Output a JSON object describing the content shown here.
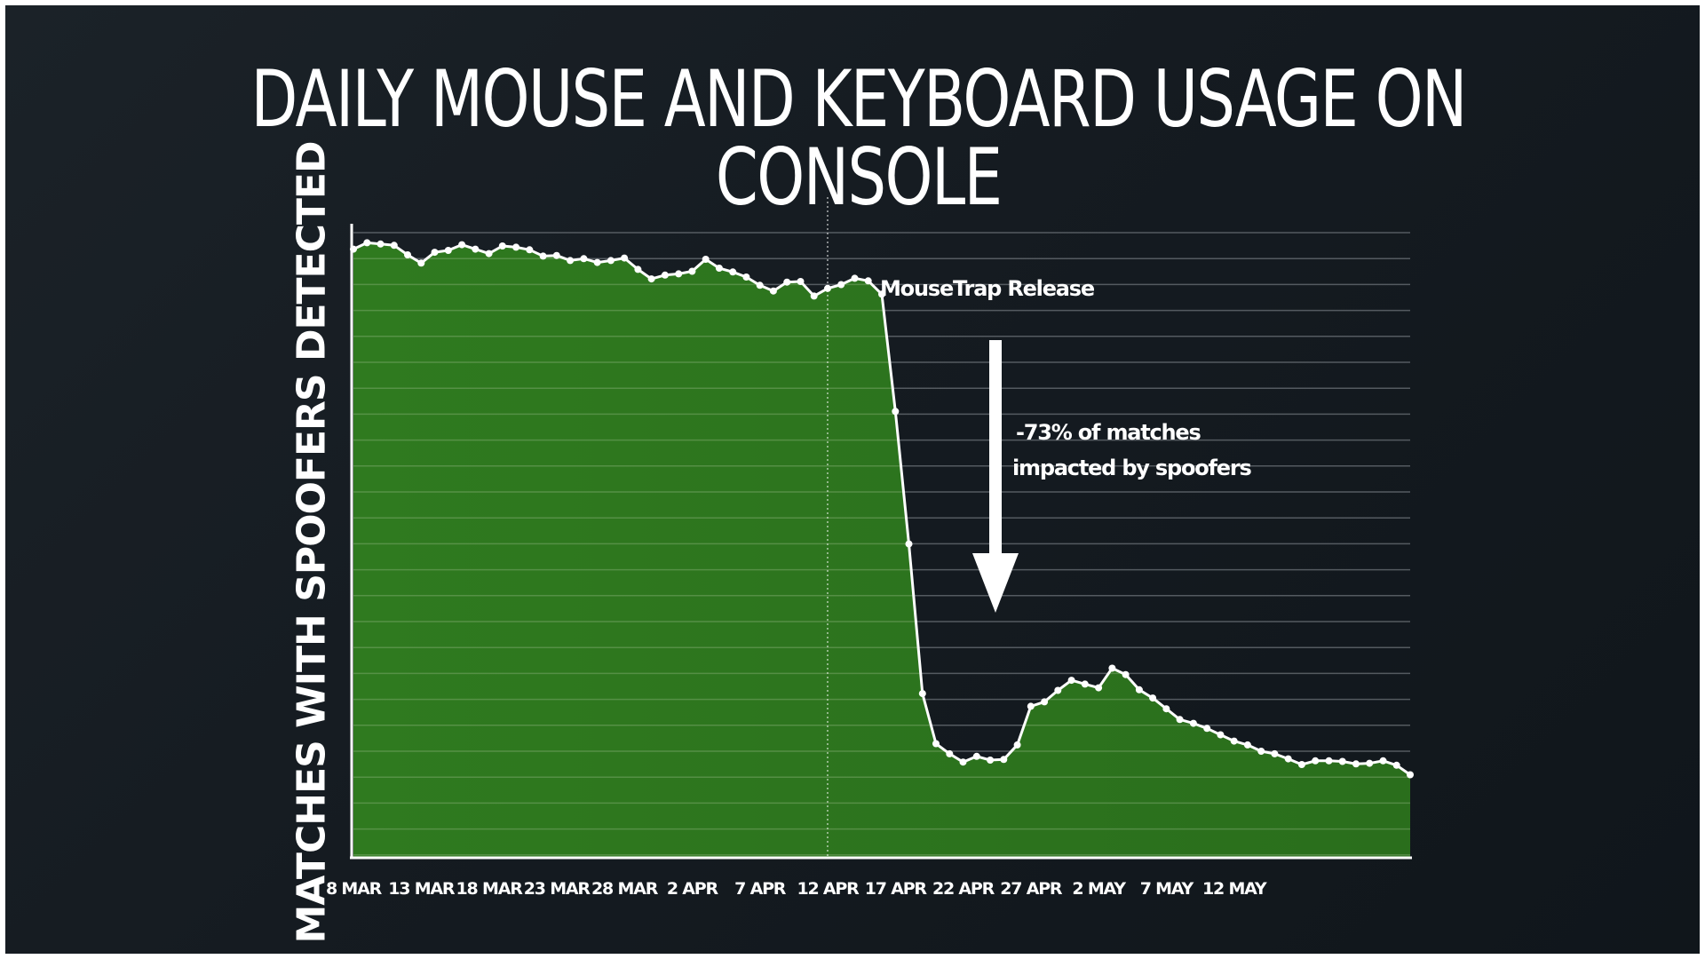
{
  "title": "DAILY MOUSE AND KEYBOARD USAGE ON CONSOLE",
  "chart_data": {
    "type": "area",
    "title": "DAILY MOUSE AND KEYBOARD USAGE ON CONSOLE",
    "xlabel": "",
    "ylabel": "MATCHES WITH SPOOFERS DETECTED",
    "x_tick_labels": [
      "8 MAR",
      "13 MAR",
      "18 MAR",
      "23 MAR",
      "28 MAR",
      "2 APR",
      "7 APR",
      "12 APR",
      "17 APR",
      "22 APR",
      "27 APR",
      "2 MAY",
      "7 MAY",
      "12 MAY"
    ],
    "y_ticks_labeled": false,
    "grid": true,
    "series_color": "#2d6e1e",
    "values": [
      96.0,
      97.0,
      96.8,
      96.6,
      95.1,
      93.8,
      95.5,
      95.8,
      96.7,
      96.0,
      95.3,
      96.5,
      96.3,
      95.9,
      94.9,
      95.0,
      94.2,
      94.5,
      93.9,
      94.2,
      94.6,
      92.8,
      91.3,
      91.9,
      92.1,
      92.5,
      94.4,
      93.0,
      92.4,
      91.6,
      90.3,
      89.4,
      90.8,
      90.9,
      88.6,
      89.8,
      90.4,
      91.4,
      91.0,
      88.9,
      70.4,
      49.5,
      25.9,
      18.0,
      16.4,
      15.1,
      16.0,
      15.4,
      15.5,
      17.8,
      23.9,
      24.6,
      26.4,
      28.0,
      27.4,
      26.8,
      29.9,
      28.9,
      26.5,
      25.2,
      23.5,
      21.8,
      21.2,
      20.4,
      19.4,
      18.4,
      17.8,
      16.8,
      16.4,
      15.6,
      14.7,
      15.3,
      15.3,
      15.2,
      14.8,
      14.9,
      15.3,
      14.6,
      13.1
    ],
    "events": [
      {
        "label": "MouseTrap Release",
        "x": "12 APR"
      }
    ],
    "annotations": [
      "-73% of matches",
      "impacted by spoofers"
    ]
  }
}
